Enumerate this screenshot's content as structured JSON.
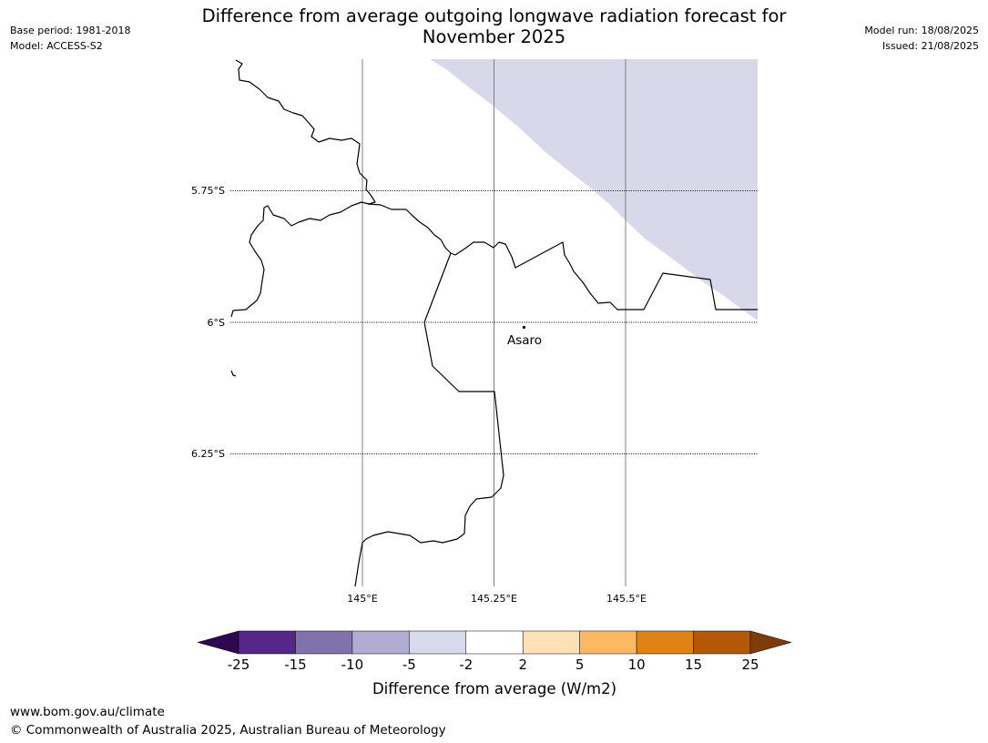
{
  "header": {
    "title_line1": "Difference from average outgoing longwave radiation forecast for",
    "title_line2": "November 2025",
    "base_period": "Base period: 1981-2018",
    "model": "Model: ACCESS-S2",
    "model_run": "Model run: 18/08/2025",
    "issued": "Issued: 21/08/2025"
  },
  "map": {
    "lat_labels": [
      "5.75°S",
      "6°S",
      "6.25°S"
    ],
    "lon_labels": [
      "145°E",
      "145.25°E",
      "145.5°E"
    ],
    "place_label": "Asaro",
    "anomaly_region_color": "#d8d8ea",
    "gridline_color": "#808080"
  },
  "colorbar": {
    "label": "Difference from average (W/m2)",
    "ticks": [
      "-25",
      "-15",
      "-10",
      "-5",
      "-2",
      "2",
      "5",
      "10",
      "15",
      "25"
    ],
    "under_color": "#2d0a4e",
    "over_color": "#7f3b08",
    "bins": [
      {
        "from": "-25",
        "to": "-15",
        "color": "#542788"
      },
      {
        "from": "-15",
        "to": "-10",
        "color": "#8073ac"
      },
      {
        "from": "-10",
        "to": "-5",
        "color": "#b2abd2"
      },
      {
        "from": "-5",
        "to": "-2",
        "color": "#d8daeb"
      },
      {
        "from": "-2",
        "to": "2",
        "color": "#ffffff"
      },
      {
        "from": "2",
        "to": "5",
        "color": "#fee0b6"
      },
      {
        "from": "5",
        "to": "10",
        "color": "#fdb863"
      },
      {
        "from": "10",
        "to": "15",
        "color": "#e08214"
      },
      {
        "from": "15",
        "to": "25",
        "color": "#b35806"
      }
    ]
  },
  "footer": {
    "website": "www.bom.gov.au/climate",
    "copyright": "© Commonwealth of Australia 2025, Australian Bureau of Meteorology"
  }
}
